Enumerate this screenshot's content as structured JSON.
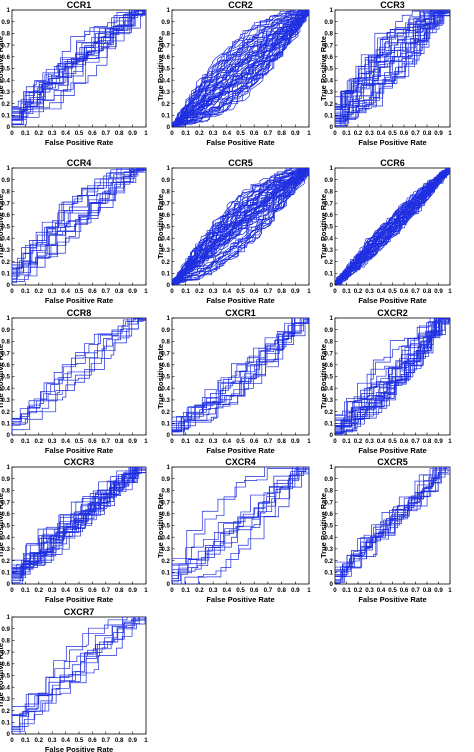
{
  "figure": {
    "line_color": "#1f2fe0"
  },
  "chart_data": [
    {
      "type": "line",
      "title": "CCR1",
      "xlabel": "False Positive Rate",
      "ylabel": "True Positive Rate",
      "xlim": [
        0,
        1
      ],
      "ylim": [
        0,
        1
      ],
      "grid": false,
      "xticks": [
        "0",
        "0.1",
        "0.2",
        "0.3",
        "0.4",
        "0.5",
        "0.6",
        "0.7",
        "0.8",
        "0.9",
        "1"
      ],
      "yticks": [
        "0",
        "0.1",
        "0.2",
        "0.3",
        "0.4",
        "0.5",
        "0.6",
        "0.7",
        "0.8",
        "0.9",
        "1"
      ],
      "curve_family": {
        "count": 20,
        "step_style": true,
        "mid_tpr_range": [
          0.32,
          0.72
        ]
      }
    },
    {
      "type": "line",
      "title": "CCR2",
      "xlabel": "False Positive Rate",
      "ylabel": "True Positive Rate",
      "xlim": [
        0,
        1
      ],
      "ylim": [
        0,
        1
      ],
      "grid": false,
      "xticks": [
        "0",
        "0.1",
        "0.2",
        "0.3",
        "0.4",
        "0.5",
        "0.6",
        "0.7",
        "0.8",
        "0.9",
        "1"
      ],
      "yticks": [
        "0",
        "0.1",
        "0.2",
        "0.3",
        "0.4",
        "0.5",
        "0.6",
        "0.7",
        "0.8",
        "0.9",
        "1"
      ],
      "curve_family": {
        "count": 60,
        "step_style": false,
        "mid_tpr_range": [
          0.22,
          0.78
        ]
      }
    },
    {
      "type": "line",
      "title": "CCR3",
      "xlabel": "False Positive Rate",
      "ylabel": "True Positive Rate",
      "xlim": [
        0,
        1
      ],
      "ylim": [
        0,
        1
      ],
      "grid": false,
      "xticks": [
        "0",
        "0.1",
        "0.2",
        "0.3",
        "0.4",
        "0.5",
        "0.6",
        "0.7",
        "0.8",
        "0.9",
        "1"
      ],
      "yticks": [
        "0",
        "0.1",
        "0.2",
        "0.3",
        "0.4",
        "0.5",
        "0.6",
        "0.7",
        "0.8",
        "0.9",
        "1"
      ],
      "curve_family": {
        "count": 30,
        "step_style": true,
        "mid_tpr_range": [
          0.3,
          0.78
        ]
      }
    },
    {
      "type": "line",
      "title": "CCR4",
      "xlabel": "False Positive Rate",
      "ylabel": "True Positive Rate",
      "xlim": [
        0,
        1
      ],
      "ylim": [
        0,
        1
      ],
      "grid": false,
      "xticks": [
        "0",
        "0.1",
        "0.2",
        "0.3",
        "0.4",
        "0.5",
        "0.6",
        "0.7",
        "0.8",
        "0.9",
        "1"
      ],
      "yticks": [
        "0",
        "0.1",
        "0.2",
        "0.3",
        "0.4",
        "0.5",
        "0.6",
        "0.7",
        "0.8",
        "0.9",
        "1"
      ],
      "curve_family": {
        "count": 16,
        "step_style": true,
        "mid_tpr_range": [
          0.35,
          0.75
        ]
      }
    },
    {
      "type": "line",
      "title": "CCR5",
      "xlabel": "False Positive Rate",
      "ylabel": "True Positive Rate",
      "xlim": [
        0,
        1
      ],
      "ylim": [
        0,
        1
      ],
      "grid": false,
      "xticks": [
        "0",
        "0.1",
        "0.2",
        "0.3",
        "0.4",
        "0.5",
        "0.6",
        "0.7",
        "0.8",
        "0.9",
        "1"
      ],
      "yticks": [
        "0",
        "0.1",
        "0.2",
        "0.3",
        "0.4",
        "0.5",
        "0.6",
        "0.7",
        "0.8",
        "0.9",
        "1"
      ],
      "curve_family": {
        "count": 60,
        "step_style": false,
        "mid_tpr_range": [
          0.28,
          0.75
        ]
      }
    },
    {
      "type": "line",
      "title": "CCR6",
      "xlabel": "False Positive Rate",
      "ylabel": "True Positive Rate",
      "xlim": [
        0,
        1
      ],
      "ylim": [
        0,
        1
      ],
      "grid": false,
      "xticks": [
        "0",
        "0.1",
        "0.2",
        "0.3",
        "0.4",
        "0.5",
        "0.6",
        "0.7",
        "0.8",
        "0.9",
        "1"
      ],
      "yticks": [
        "0",
        "0.1",
        "0.2",
        "0.3",
        "0.4",
        "0.5",
        "0.6",
        "0.7",
        "0.8",
        "0.9",
        "1"
      ],
      "curve_family": {
        "count": 50,
        "step_style": false,
        "mid_tpr_range": [
          0.4,
          0.6
        ]
      }
    },
    {
      "type": "line",
      "title": "CCR8",
      "xlabel": "False Positive Rate",
      "ylabel": "True Positive Rate",
      "xlim": [
        0,
        1
      ],
      "ylim": [
        0,
        1
      ],
      "grid": false,
      "xticks": [
        "0",
        "0.1",
        "0.2",
        "0.3",
        "0.4",
        "0.5",
        "0.6",
        "0.7",
        "0.8",
        "0.9",
        "1"
      ],
      "yticks": [
        "0",
        "0.1",
        "0.2",
        "0.3",
        "0.4",
        "0.5",
        "0.6",
        "0.7",
        "0.8",
        "0.9",
        "1"
      ],
      "curve_family": {
        "count": 8,
        "step_style": true,
        "mid_tpr_range": [
          0.4,
          0.65
        ]
      }
    },
    {
      "type": "line",
      "title": "CXCR1",
      "xlabel": "False Positive Rate",
      "ylabel": "True Positive Rate",
      "xlim": [
        0,
        1
      ],
      "ylim": [
        0,
        1
      ],
      "grid": false,
      "xticks": [
        "0",
        "0.1",
        "0.2",
        "0.3",
        "0.4",
        "0.5",
        "0.6",
        "0.7",
        "0.8",
        "0.9",
        "1"
      ],
      "yticks": [
        "0",
        "0.1",
        "0.2",
        "0.3",
        "0.4",
        "0.5",
        "0.6",
        "0.7",
        "0.8",
        "0.9",
        "1"
      ],
      "curve_family": {
        "count": 14,
        "step_style": true,
        "mid_tpr_range": [
          0.3,
          0.55
        ]
      }
    },
    {
      "type": "line",
      "title": "CXCR2",
      "xlabel": "False Positive Rate",
      "ylabel": "True Positive Rate",
      "xlim": [
        0,
        1
      ],
      "ylim": [
        0,
        1
      ],
      "grid": false,
      "xticks": [
        "0",
        "0.1",
        "0.2",
        "0.3",
        "0.4",
        "0.5",
        "0.6",
        "0.7",
        "0.8",
        "0.9",
        "1"
      ],
      "yticks": [
        "0",
        "0.1",
        "0.2",
        "0.3",
        "0.4",
        "0.5",
        "0.6",
        "0.7",
        "0.8",
        "0.9",
        "1"
      ],
      "curve_family": {
        "count": 25,
        "step_style": true,
        "mid_tpr_range": [
          0.3,
          0.7
        ]
      }
    },
    {
      "type": "line",
      "title": "CXCR3",
      "xlabel": "False Positive Rate",
      "ylabel": "True Positive Rate",
      "xlim": [
        0,
        1
      ],
      "ylim": [
        0,
        1
      ],
      "grid": false,
      "xticks": [
        "0",
        "0.1",
        "0.2",
        "0.3",
        "0.4",
        "0.5",
        "0.6",
        "0.7",
        "0.8",
        "0.9",
        "1"
      ],
      "yticks": [
        "0",
        "0.1",
        "0.2",
        "0.3",
        "0.4",
        "0.5",
        "0.6",
        "0.7",
        "0.8",
        "0.9",
        "1"
      ],
      "curve_family": {
        "count": 25,
        "step_style": true,
        "mid_tpr_range": [
          0.42,
          0.6
        ]
      }
    },
    {
      "type": "line",
      "title": "CXCR4",
      "xlabel": "False Positive Rate",
      "ylabel": "True Positive Rate",
      "xlim": [
        0,
        1
      ],
      "ylim": [
        0,
        1
      ],
      "grid": false,
      "xticks": [
        "0",
        "0.1",
        "0.2",
        "0.3",
        "0.4",
        "0.5",
        "0.6",
        "0.7",
        "0.8",
        "0.9",
        "1"
      ],
      "yticks": [
        "0",
        "0.1",
        "0.2",
        "0.3",
        "0.4",
        "0.5",
        "0.6",
        "0.7",
        "0.8",
        "0.9",
        "1"
      ],
      "curve_family": {
        "count": 12,
        "step_style": true,
        "mid_tpr_range": [
          0.2,
          0.8
        ]
      }
    },
    {
      "type": "line",
      "title": "CXCR5",
      "xlabel": "False Positive Rate",
      "ylabel": "True Positive Rate",
      "xlim": [
        0,
        1
      ],
      "ylim": [
        0,
        1
      ],
      "grid": false,
      "xticks": [
        "0",
        "0.1",
        "0.2",
        "0.3",
        "0.4",
        "0.5",
        "0.6",
        "0.7",
        "0.8",
        "0.9",
        "1"
      ],
      "yticks": [
        "0",
        "0.1",
        "0.2",
        "0.3",
        "0.4",
        "0.5",
        "0.6",
        "0.7",
        "0.8",
        "0.9",
        "1"
      ],
      "curve_family": {
        "count": 15,
        "step_style": true,
        "mid_tpr_range": [
          0.38,
          0.6
        ]
      }
    },
    {
      "type": "line",
      "title": "CXCR7",
      "xlabel": "False Positive Rate",
      "ylabel": "True Positive Rate",
      "xlim": [
        0,
        1
      ],
      "ylim": [
        0,
        1
      ],
      "grid": false,
      "xticks": [
        "0",
        "0.1",
        "0.2",
        "0.3",
        "0.4",
        "0.5",
        "0.6",
        "0.7",
        "0.8",
        "0.9",
        "1"
      ],
      "yticks": [
        "0",
        "0.1",
        "0.2",
        "0.3",
        "0.4",
        "0.5",
        "0.6",
        "0.7",
        "0.8",
        "0.9",
        "1"
      ],
      "curve_family": {
        "count": 10,
        "step_style": true,
        "mid_tpr_range": [
          0.3,
          0.75
        ]
      }
    }
  ]
}
